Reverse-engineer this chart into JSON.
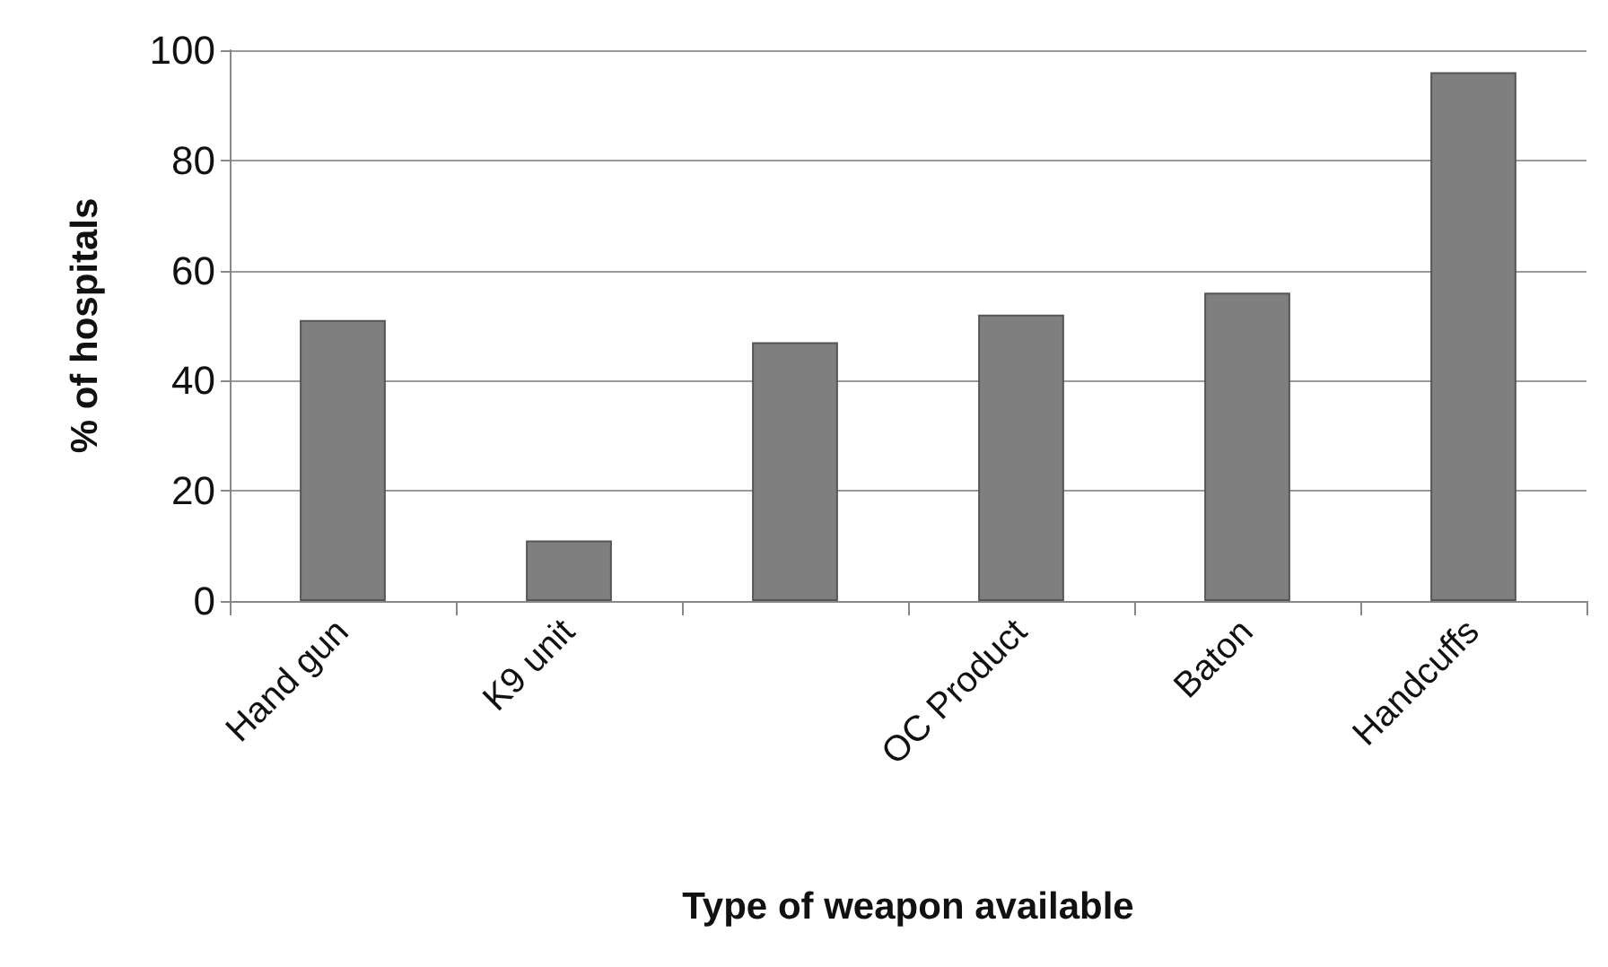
{
  "chart_data": {
    "type": "bar",
    "xlabel": "Type of weapon available",
    "ylabel": "% of hospitals",
    "categories": [
      "Hand gun",
      "K9 unit",
      null,
      "OC Product",
      "Baton",
      "Handcuffs"
    ],
    "values": [
      51,
      11,
      47,
      52,
      56,
      96
    ],
    "color": "#7f7f7f",
    "ylim": [
      0,
      100
    ],
    "yticks": [
      0,
      20,
      40,
      60,
      80,
      100
    ],
    "grid": "y"
  }
}
